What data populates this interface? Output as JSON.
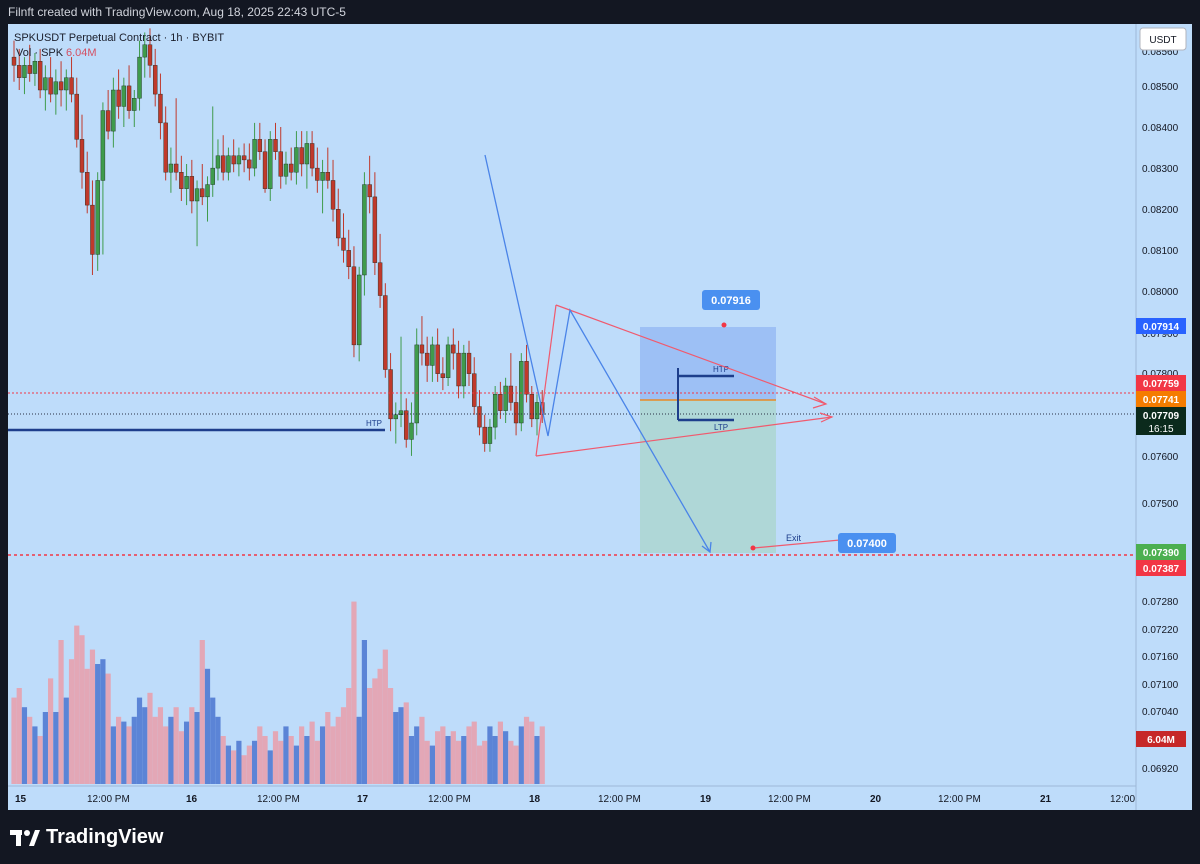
{
  "header": {
    "created_by": "Filnft created with TradingView.com, Aug 18, 2025 22:43 UTC-5"
  },
  "legend": {
    "symbol_line": "SPKUSDT Perpetual Contract · 1h · BYBIT",
    "volume_line": "Vol · SPK",
    "volume_value": "6.04M"
  },
  "branding": {
    "logo_text": "TradingView",
    "logo_icon": "tradingview-logo-icon"
  },
  "colors": {
    "background": "#bedcfa",
    "bull": "#3f9b4c",
    "bear": "#c0392b",
    "vol_bull": "#5b84d6",
    "vol_bear": "#e3a7b6",
    "trend_line": "#f05a6e",
    "hline": "#1d3e8c",
    "path": "#4a84e8"
  },
  "chart_data": {
    "type": "candlestick",
    "title": "SPKUSDT Perpetual Contract · 1h · BYBIT",
    "currency": "USDT",
    "y_axis_ticks": [
      "0.08500",
      "0.08400",
      "0.08300",
      "0.08200",
      "0.08100",
      "0.08000",
      "0.07800",
      "0.07600",
      "0.07500",
      "0.07280",
      "0.07220",
      "0.07160",
      "0.07100",
      "0.07040",
      "0.06920"
    ],
    "y_axis_partial": [
      "0.08560",
      "0.07900",
      "0.07340",
      "0.06980"
    ],
    "price_labels": [
      {
        "value": "0.07914",
        "color": "#2962ff"
      },
      {
        "value": "0.07759",
        "color": "#f23645"
      },
      {
        "value": "0.07741",
        "color": "#f57c00"
      },
      {
        "value": "0.07709",
        "sub": "16:15",
        "color": "#0b2a1c"
      },
      {
        "value": "0.07390",
        "color": "#4caf50"
      },
      {
        "value": "0.07387",
        "color": "#f23645"
      },
      {
        "value": "6.04M",
        "color": "#c62828"
      }
    ],
    "x_axis_ticks": [
      "15",
      "12:00 PM",
      "16",
      "12:00 PM",
      "17",
      "12:00 PM",
      "18",
      "12:00 PM",
      "19",
      "12:00 PM",
      "20",
      "12:00 PM",
      "21",
      "12:00"
    ],
    "annotations": {
      "target": "0.07916",
      "exit": "0.07400",
      "exit_label": "Exit",
      "htp_left": "HTP",
      "htp_right": "HTP",
      "ltp_right": "LTP"
    },
    "series": [
      {
        "o": 0.0858,
        "h": 0.0862,
        "l": 0.0852,
        "c": 0.0856,
        "v": 18
      },
      {
        "o": 0.0856,
        "h": 0.086,
        "l": 0.085,
        "c": 0.0853,
        "v": 20
      },
      {
        "o": 0.0853,
        "h": 0.0858,
        "l": 0.0849,
        "c": 0.0856,
        "v": 16
      },
      {
        "o": 0.0856,
        "h": 0.0861,
        "l": 0.0852,
        "c": 0.0854,
        "v": 14
      },
      {
        "o": 0.0854,
        "h": 0.0859,
        "l": 0.0851,
        "c": 0.0857,
        "v": 12
      },
      {
        "o": 0.0857,
        "h": 0.086,
        "l": 0.0848,
        "c": 0.085,
        "v": 10
      },
      {
        "o": 0.085,
        "h": 0.0856,
        "l": 0.0845,
        "c": 0.0853,
        "v": 15
      },
      {
        "o": 0.0853,
        "h": 0.0858,
        "l": 0.0847,
        "c": 0.0849,
        "v": 22
      },
      {
        "o": 0.0849,
        "h": 0.0855,
        "l": 0.0844,
        "c": 0.0852,
        "v": 15
      },
      {
        "o": 0.0852,
        "h": 0.0857,
        "l": 0.0846,
        "c": 0.085,
        "v": 30
      },
      {
        "o": 0.085,
        "h": 0.0855,
        "l": 0.0845,
        "c": 0.0853,
        "v": 18
      },
      {
        "o": 0.0853,
        "h": 0.0858,
        "l": 0.0847,
        "c": 0.0849,
        "v": 26
      },
      {
        "o": 0.0849,
        "h": 0.0853,
        "l": 0.0836,
        "c": 0.0838,
        "v": 33
      },
      {
        "o": 0.0838,
        "h": 0.0844,
        "l": 0.0826,
        "c": 0.083,
        "v": 31
      },
      {
        "o": 0.083,
        "h": 0.0835,
        "l": 0.082,
        "c": 0.0822,
        "v": 24
      },
      {
        "o": 0.0822,
        "h": 0.0828,
        "l": 0.0805,
        "c": 0.081,
        "v": 28
      },
      {
        "o": 0.081,
        "h": 0.083,
        "l": 0.0806,
        "c": 0.0828,
        "v": 25
      },
      {
        "o": 0.0828,
        "h": 0.0847,
        "l": 0.081,
        "c": 0.0845,
        "v": 26
      },
      {
        "o": 0.0845,
        "h": 0.085,
        "l": 0.0838,
        "c": 0.084,
        "v": 23
      },
      {
        "o": 0.084,
        "h": 0.0853,
        "l": 0.0836,
        "c": 0.085,
        "v": 12
      },
      {
        "o": 0.085,
        "h": 0.0855,
        "l": 0.0843,
        "c": 0.0846,
        "v": 14
      },
      {
        "o": 0.0846,
        "h": 0.0853,
        "l": 0.0841,
        "c": 0.0851,
        "v": 13
      },
      {
        "o": 0.0851,
        "h": 0.0856,
        "l": 0.0843,
        "c": 0.0845,
        "v": 12
      },
      {
        "o": 0.0845,
        "h": 0.085,
        "l": 0.0841,
        "c": 0.0848,
        "v": 14
      },
      {
        "o": 0.0848,
        "h": 0.0862,
        "l": 0.0845,
        "c": 0.0858,
        "v": 18
      },
      {
        "o": 0.0858,
        "h": 0.0864,
        "l": 0.0853,
        "c": 0.0861,
        "v": 16
      },
      {
        "o": 0.0861,
        "h": 0.0865,
        "l": 0.0853,
        "c": 0.0856,
        "v": 19
      },
      {
        "o": 0.0856,
        "h": 0.086,
        "l": 0.0846,
        "c": 0.0849,
        "v": 14
      },
      {
        "o": 0.0849,
        "h": 0.0854,
        "l": 0.0838,
        "c": 0.0842,
        "v": 16
      },
      {
        "o": 0.0842,
        "h": 0.0846,
        "l": 0.0828,
        "c": 0.083,
        "v": 12
      },
      {
        "o": 0.083,
        "h": 0.0836,
        "l": 0.0825,
        "c": 0.0832,
        "v": 14
      },
      {
        "o": 0.0832,
        "h": 0.0848,
        "l": 0.0828,
        "c": 0.083,
        "v": 16
      },
      {
        "o": 0.083,
        "h": 0.0834,
        "l": 0.0823,
        "c": 0.0826,
        "v": 11
      },
      {
        "o": 0.0826,
        "h": 0.0832,
        "l": 0.0822,
        "c": 0.0829,
        "v": 13
      },
      {
        "o": 0.0829,
        "h": 0.0833,
        "l": 0.082,
        "c": 0.0823,
        "v": 16
      },
      {
        "o": 0.0823,
        "h": 0.0828,
        "l": 0.0812,
        "c": 0.0826,
        "v": 15
      },
      {
        "o": 0.0826,
        "h": 0.0832,
        "l": 0.0822,
        "c": 0.0824,
        "v": 30
      },
      {
        "o": 0.0824,
        "h": 0.0829,
        "l": 0.0818,
        "c": 0.0827,
        "v": 24
      },
      {
        "o": 0.0827,
        "h": 0.0846,
        "l": 0.0824,
        "c": 0.0831,
        "v": 18
      },
      {
        "o": 0.0831,
        "h": 0.0838,
        "l": 0.0828,
        "c": 0.0834,
        "v": 14
      },
      {
        "o": 0.0834,
        "h": 0.0839,
        "l": 0.0828,
        "c": 0.083,
        "v": 10
      },
      {
        "o": 0.083,
        "h": 0.0836,
        "l": 0.0828,
        "c": 0.0834,
        "v": 8
      },
      {
        "o": 0.0834,
        "h": 0.0838,
        "l": 0.083,
        "c": 0.0832,
        "v": 7
      },
      {
        "o": 0.0832,
        "h": 0.0836,
        "l": 0.0829,
        "c": 0.0834,
        "v": 9
      },
      {
        "o": 0.0834,
        "h": 0.0837,
        "l": 0.083,
        "c": 0.0833,
        "v": 6
      },
      {
        "o": 0.0833,
        "h": 0.0837,
        "l": 0.0828,
        "c": 0.0831,
        "v": 8
      },
      {
        "o": 0.0831,
        "h": 0.0842,
        "l": 0.0829,
        "c": 0.0838,
        "v": 9
      },
      {
        "o": 0.0838,
        "h": 0.0842,
        "l": 0.0833,
        "c": 0.0835,
        "v": 12
      },
      {
        "o": 0.0835,
        "h": 0.0838,
        "l": 0.0825,
        "c": 0.0826,
        "v": 10
      },
      {
        "o": 0.0826,
        "h": 0.084,
        "l": 0.0823,
        "c": 0.0838,
        "v": 7
      },
      {
        "o": 0.0838,
        "h": 0.0842,
        "l": 0.0833,
        "c": 0.0835,
        "v": 11
      },
      {
        "o": 0.0835,
        "h": 0.0841,
        "l": 0.0826,
        "c": 0.0829,
        "v": 9
      },
      {
        "o": 0.0829,
        "h": 0.0835,
        "l": 0.0827,
        "c": 0.0832,
        "v": 12
      },
      {
        "o": 0.0832,
        "h": 0.0836,
        "l": 0.0828,
        "c": 0.083,
        "v": 10
      },
      {
        "o": 0.083,
        "h": 0.084,
        "l": 0.0827,
        "c": 0.0836,
        "v": 8
      },
      {
        "o": 0.0836,
        "h": 0.084,
        "l": 0.0829,
        "c": 0.0832,
        "v": 12
      },
      {
        "o": 0.0832,
        "h": 0.084,
        "l": 0.0826,
        "c": 0.0837,
        "v": 10
      },
      {
        "o": 0.0837,
        "h": 0.084,
        "l": 0.0829,
        "c": 0.0831,
        "v": 13
      },
      {
        "o": 0.0831,
        "h": 0.0836,
        "l": 0.0825,
        "c": 0.0828,
        "v": 9
      },
      {
        "o": 0.0828,
        "h": 0.0833,
        "l": 0.082,
        "c": 0.083,
        "v": 12
      },
      {
        "o": 0.083,
        "h": 0.0836,
        "l": 0.0826,
        "c": 0.0828,
        "v": 15
      },
      {
        "o": 0.0828,
        "h": 0.0833,
        "l": 0.0818,
        "c": 0.0821,
        "v": 12
      },
      {
        "o": 0.0821,
        "h": 0.0826,
        "l": 0.0812,
        "c": 0.0814,
        "v": 14
      },
      {
        "o": 0.0814,
        "h": 0.082,
        "l": 0.0808,
        "c": 0.0811,
        "v": 16
      },
      {
        "o": 0.0811,
        "h": 0.0816,
        "l": 0.0804,
        "c": 0.0807,
        "v": 20
      },
      {
        "o": 0.0807,
        "h": 0.0812,
        "l": 0.0785,
        "c": 0.0788,
        "v": 38
      },
      {
        "o": 0.0788,
        "h": 0.0807,
        "l": 0.0784,
        "c": 0.0805,
        "v": 14
      },
      {
        "o": 0.0805,
        "h": 0.083,
        "l": 0.08,
        "c": 0.0827,
        "v": 30
      },
      {
        "o": 0.0827,
        "h": 0.0834,
        "l": 0.082,
        "c": 0.0824,
        "v": 20
      },
      {
        "o": 0.0824,
        "h": 0.083,
        "l": 0.0805,
        "c": 0.0808,
        "v": 22
      },
      {
        "o": 0.0808,
        "h": 0.0815,
        "l": 0.0797,
        "c": 0.08,
        "v": 24
      },
      {
        "o": 0.08,
        "h": 0.0803,
        "l": 0.078,
        "c": 0.0782,
        "v": 28
      },
      {
        "o": 0.0782,
        "h": 0.0786,
        "l": 0.0767,
        "c": 0.077,
        "v": 20
      },
      {
        "o": 0.077,
        "h": 0.0774,
        "l": 0.0764,
        "c": 0.0771,
        "v": 15
      },
      {
        "o": 0.0771,
        "h": 0.079,
        "l": 0.0768,
        "c": 0.0772,
        "v": 16
      },
      {
        "o": 0.0772,
        "h": 0.0775,
        "l": 0.0763,
        "c": 0.0765,
        "v": 17
      },
      {
        "o": 0.0765,
        "h": 0.0774,
        "l": 0.0761,
        "c": 0.0769,
        "v": 10
      },
      {
        "o": 0.0769,
        "h": 0.0792,
        "l": 0.0766,
        "c": 0.0788,
        "v": 12
      },
      {
        "o": 0.0788,
        "h": 0.0795,
        "l": 0.0783,
        "c": 0.0786,
        "v": 14
      },
      {
        "o": 0.0786,
        "h": 0.079,
        "l": 0.0779,
        "c": 0.0783,
        "v": 9
      },
      {
        "o": 0.0783,
        "h": 0.079,
        "l": 0.0779,
        "c": 0.0788,
        "v": 8
      },
      {
        "o": 0.0788,
        "h": 0.0792,
        "l": 0.0779,
        "c": 0.0781,
        "v": 11
      },
      {
        "o": 0.0781,
        "h": 0.0785,
        "l": 0.0777,
        "c": 0.078,
        "v": 12
      },
      {
        "o": 0.078,
        "h": 0.079,
        "l": 0.0778,
        "c": 0.0788,
        "v": 10
      },
      {
        "o": 0.0788,
        "h": 0.0792,
        "l": 0.0782,
        "c": 0.0786,
        "v": 11
      },
      {
        "o": 0.0786,
        "h": 0.0789,
        "l": 0.0775,
        "c": 0.0778,
        "v": 9
      },
      {
        "o": 0.0778,
        "h": 0.0788,
        "l": 0.0775,
        "c": 0.0786,
        "v": 10
      },
      {
        "o": 0.0786,
        "h": 0.0789,
        "l": 0.0778,
        "c": 0.0781,
        "v": 12
      },
      {
        "o": 0.0781,
        "h": 0.0785,
        "l": 0.0771,
        "c": 0.0773,
        "v": 13
      },
      {
        "o": 0.0773,
        "h": 0.0777,
        "l": 0.0766,
        "c": 0.0768,
        "v": 8
      },
      {
        "o": 0.0768,
        "h": 0.0771,
        "l": 0.0762,
        "c": 0.0764,
        "v": 9
      },
      {
        "o": 0.0764,
        "h": 0.077,
        "l": 0.0762,
        "c": 0.0768,
        "v": 12
      },
      {
        "o": 0.0768,
        "h": 0.0778,
        "l": 0.0765,
        "c": 0.0776,
        "v": 10
      },
      {
        "o": 0.0776,
        "h": 0.0779,
        "l": 0.077,
        "c": 0.0772,
        "v": 13
      },
      {
        "o": 0.0772,
        "h": 0.078,
        "l": 0.0769,
        "c": 0.0778,
        "v": 11
      },
      {
        "o": 0.0778,
        "h": 0.0786,
        "l": 0.0772,
        "c": 0.0774,
        "v": 9
      },
      {
        "o": 0.0774,
        "h": 0.0778,
        "l": 0.0766,
        "c": 0.0769,
        "v": 8
      },
      {
        "o": 0.0769,
        "h": 0.0786,
        "l": 0.0767,
        "c": 0.0784,
        "v": 12
      },
      {
        "o": 0.0784,
        "h": 0.0788,
        "l": 0.0774,
        "c": 0.0776,
        "v": 14
      },
      {
        "o": 0.0776,
        "h": 0.0778,
        "l": 0.0768,
        "c": 0.077,
        "v": 13
      },
      {
        "o": 0.077,
        "h": 0.0776,
        "l": 0.0766,
        "c": 0.0774,
        "v": 10
      },
      {
        "o": 0.0774,
        "h": 0.0777,
        "l": 0.0769,
        "c": 0.0771,
        "v": 12
      }
    ]
  }
}
